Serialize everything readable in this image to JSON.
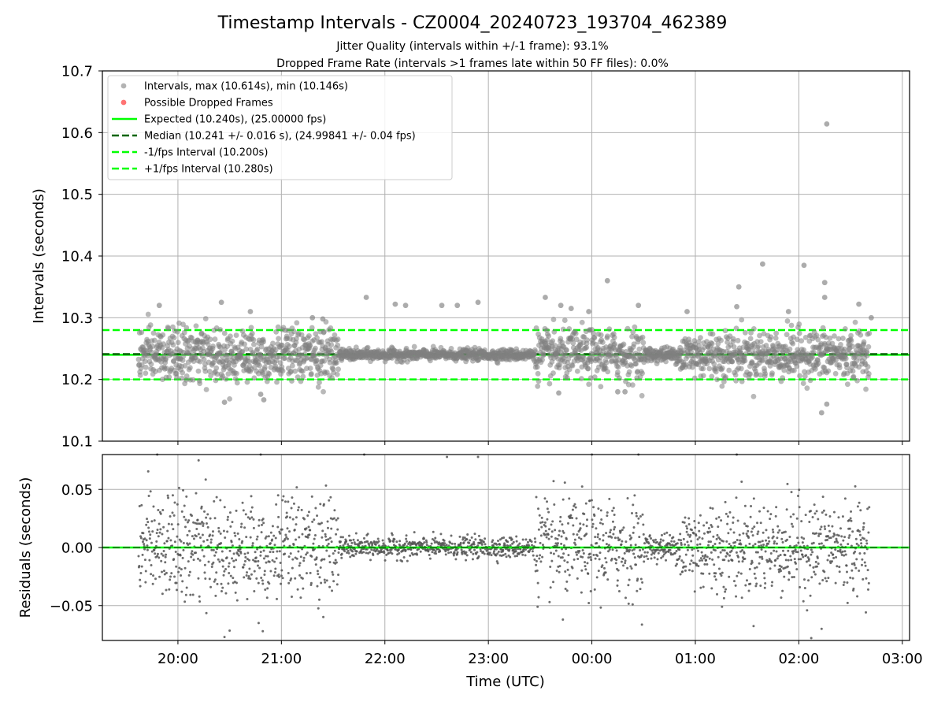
{
  "colors": {
    "points": "#808080",
    "dropped": "#ff6464",
    "expected": "#00ff00",
    "median": "#006400",
    "bounds": "#00ff00",
    "residual_points": "#555555",
    "grid": "#b0b0b0"
  },
  "chart_data": [
    {
      "type": "scatter",
      "title": "Timestamp Intervals - CZ0004_20240723_193704_462389",
      "subtitle_1": "Jitter Quality (intervals within +/-1 frame): 93.1%",
      "subtitle_2": "Dropped Frame Rate (intervals >1 frames late within 50 FF files): 0.0%",
      "ylabel": "Intervals (seconds)",
      "ylim": [
        10.1,
        10.7
      ],
      "yticks": [
        "10.1",
        "10.2",
        "10.3",
        "10.4",
        "10.5",
        "10.6",
        "10.7"
      ],
      "ytick_values": [
        10.1,
        10.2,
        10.3,
        10.4,
        10.5,
        10.6,
        10.7
      ],
      "grid": true,
      "legend_position": "top-left",
      "legend": [
        "Intervals, max (10.614s), min (10.146s)",
        "Possible Dropped Frames",
        "Expected (10.240s), (25.00000 fps)",
        "Median (10.241 +/- 0.016 s), (24.99841 +/- 0.04 fps)",
        "-1/fps Interval (10.200s)",
        "+1/fps Interval (10.280s)"
      ],
      "lines": {
        "expected": 10.24,
        "median": 10.241,
        "minus_one_fps": 10.2,
        "plus_one_fps": 10.28
      },
      "outliers": [
        [
          19.82,
          10.32
        ],
        [
          20.42,
          10.325
        ],
        [
          20.7,
          10.31
        ],
        [
          21.82,
          10.333
        ],
        [
          22.1,
          10.322
        ],
        [
          22.2,
          10.32
        ],
        [
          22.55,
          10.32
        ],
        [
          22.7,
          10.32
        ],
        [
          22.9,
          10.325
        ],
        [
          23.55,
          10.333
        ],
        [
          23.7,
          10.32
        ],
        [
          23.8,
          10.315
        ],
        [
          23.97,
          10.31
        ],
        [
          24.15,
          10.36
        ],
        [
          24.45,
          10.32
        ],
        [
          24.92,
          10.31
        ],
        [
          25.42,
          10.35
        ],
        [
          25.65,
          10.387
        ],
        [
          26.05,
          10.385
        ],
        [
          26.25,
          10.357
        ],
        [
          26.25,
          10.333
        ],
        [
          26.27,
          10.614
        ],
        [
          26.58,
          10.322
        ],
        [
          26.7,
          10.3
        ],
        [
          20.45,
          10.163
        ],
        [
          20.8,
          10.176
        ],
        [
          20.83,
          10.167
        ],
        [
          26.22,
          10.146
        ],
        [
          26.27,
          10.16
        ],
        [
          23.68,
          10.178
        ],
        [
          24.25,
          10.18
        ],
        [
          24.32,
          10.18
        ],
        [
          21.3,
          10.3
        ],
        [
          21.4,
          10.298
        ],
        [
          25.4,
          10.318
        ],
        [
          25.9,
          10.31
        ]
      ]
    },
    {
      "type": "scatter",
      "xlabel": "Time (UTC)",
      "ylabel": "Residuals (seconds)",
      "ylim": [
        -0.08,
        0.08
      ],
      "yticks": [
        "−0.05",
        "0.00",
        "0.05"
      ],
      "ytick_values": [
        -0.05,
        0.0,
        0.05
      ],
      "xticks": [
        "20:00",
        "21:00",
        "22:00",
        "23:00",
        "00:00",
        "01:00",
        "02:00",
        "03:00"
      ],
      "xtick_values": [
        20,
        21,
        22,
        23,
        24,
        25,
        26,
        27
      ],
      "xlim": [
        19.27,
        27.07
      ],
      "data_range": [
        19.62,
        26.68
      ],
      "grid": true,
      "zero_line": 0.0,
      "outliers": [
        [
          20.45,
          -0.077
        ],
        [
          20.82,
          -0.072
        ],
        [
          20.78,
          -0.065
        ],
        [
          22.6,
          0.078
        ],
        [
          22.9,
          0.078
        ],
        [
          23.72,
          -0.062
        ],
        [
          24.0,
          0.08
        ],
        [
          24.45,
          0.08
        ],
        [
          25.4,
          0.08
        ],
        [
          26.12,
          -0.078
        ],
        [
          26.22,
          -0.07
        ],
        [
          20.2,
          0.075
        ],
        [
          19.8,
          0.08
        ],
        [
          20.8,
          0.08
        ],
        [
          21.8,
          0.08
        ]
      ]
    }
  ]
}
